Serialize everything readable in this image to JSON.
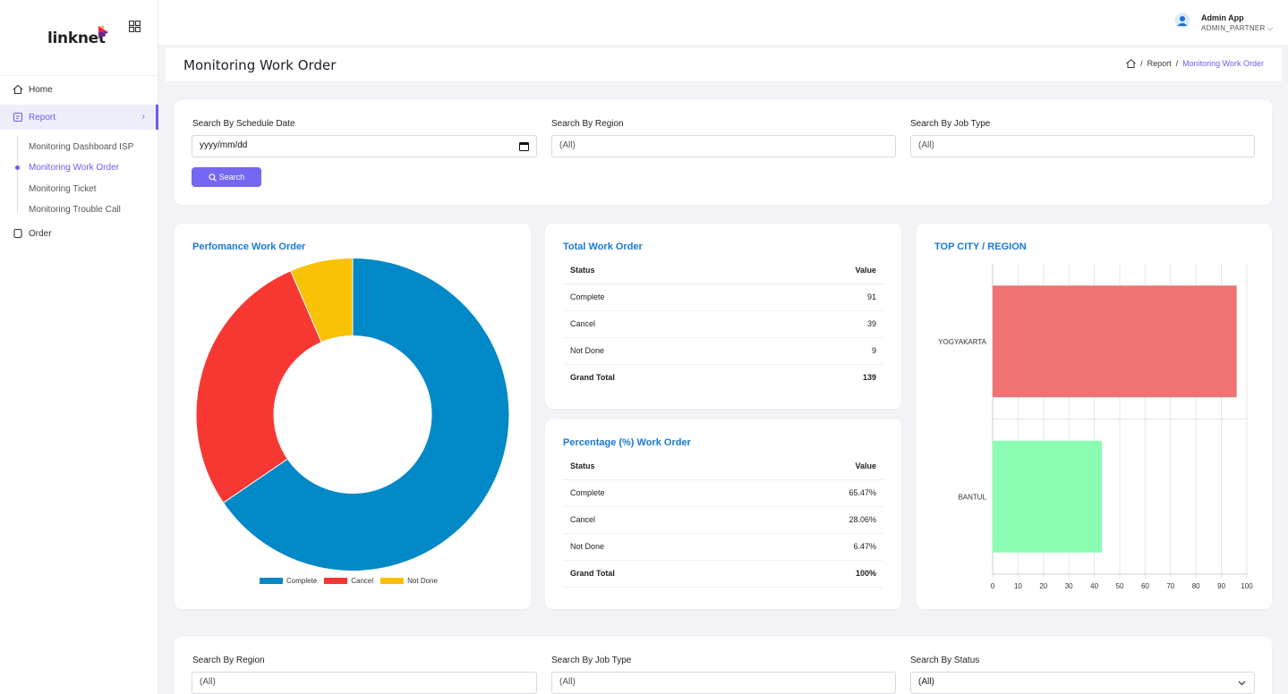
{
  "brand": {
    "logo_text": "linknet"
  },
  "sidebar": {
    "items": [
      {
        "label": "Home",
        "icon": "home-icon"
      },
      {
        "label": "Report",
        "icon": "report-icon",
        "active": true
      },
      {
        "label": "Order",
        "icon": "order-icon"
      }
    ],
    "report_subitems": [
      {
        "label": "Monitoring Dashboard ISP"
      },
      {
        "label": "Monitoring Work Order",
        "active": true
      },
      {
        "label": "Monitoring Ticket"
      },
      {
        "label": "Monitoring Trouble Call"
      }
    ]
  },
  "topbar": {
    "user_name": "Admin App",
    "user_role": "ADMIN_PARTNER ⌵"
  },
  "page": {
    "title": "Monitoring Work Order",
    "breadcrumb": {
      "sep": "/",
      "report": "Report",
      "current": "Monitoring Work Order"
    }
  },
  "filters_top": {
    "date_label": "Search By Schedule Date",
    "date_value": "yyyy/mm/dd",
    "region_label": "Search By Region",
    "region_value": "(All)",
    "jobtype_label": "Search By Job Type",
    "jobtype_value": "(All)",
    "search_label": "Search"
  },
  "performance": {
    "title": "Perfomance Work Order",
    "legend": [
      "Complete",
      "Cancel",
      "Not Done"
    ],
    "colors": [
      "#0088c7",
      "#f73832",
      "#f9c104"
    ]
  },
  "total_table": {
    "title": "Total Work Order",
    "headers": [
      "Status",
      "Value"
    ],
    "rows": [
      {
        "status": "Complete",
        "value": "91"
      },
      {
        "status": "Cancel",
        "value": "39"
      },
      {
        "status": "Not Done",
        "value": "9"
      }
    ],
    "total": {
      "status": "Grand Total",
      "value": "139"
    }
  },
  "percent_table": {
    "title": "Percentage (%) Work Order",
    "headers": [
      "Status",
      "Value"
    ],
    "rows": [
      {
        "status": "Complete",
        "value": "65.47%"
      },
      {
        "status": "Cancel",
        "value": "28.06%"
      },
      {
        "status": "Not Done",
        "value": "6.47%"
      }
    ],
    "total": {
      "status": "Grand Total",
      "value": "100%"
    }
  },
  "top_city": {
    "title": "TOP CITY / REGION",
    "colors": [
      "#ee7372",
      "#8bfdb2"
    ]
  },
  "filters_bottom": {
    "region_label": "Search By Region",
    "region_value": "(All)",
    "jobtype_label": "Search By Job Type",
    "jobtype_value": "(All)",
    "status_label": "Search By Status",
    "status_value": "(All)"
  },
  "chart_data": [
    {
      "type": "pie",
      "title": "Perfomance Work Order",
      "categories": [
        "Complete",
        "Cancel",
        "Not Done"
      ],
      "values": [
        91,
        39,
        9
      ],
      "legend_position": "bottom"
    },
    {
      "type": "bar",
      "orientation": "horizontal",
      "title": "TOP CITY / REGION",
      "categories": [
        "YOGYAKARTA",
        "BANTUL"
      ],
      "values": [
        96,
        43
      ],
      "xlim": [
        0,
        100
      ],
      "xticks": [
        0,
        10,
        20,
        30,
        40,
        50,
        60,
        70,
        80,
        90,
        100
      ],
      "grid": true
    }
  ]
}
